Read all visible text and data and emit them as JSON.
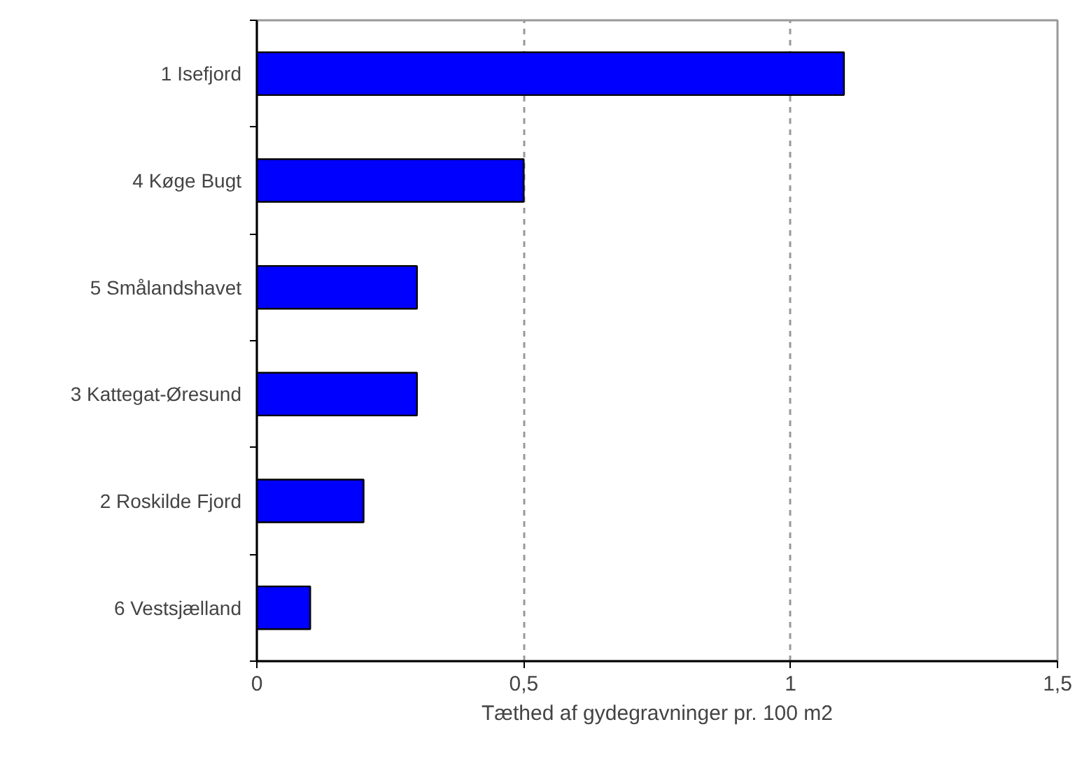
{
  "chart_data": {
    "type": "bar",
    "orientation": "horizontal",
    "categories": [
      "1 Isefjord",
      "4 Køge Bugt",
      "5 Smålandshavet",
      "3 Kattegat-Øresund",
      "2 Roskilde Fjord",
      "6 Vestsjælland"
    ],
    "values": [
      1.1,
      0.5,
      0.3,
      0.3,
      0.2,
      0.1
    ],
    "color": "#0000ff",
    "xlabel": "Tæthed af gydegravninger pr. 100 m2",
    "xlim": [
      0,
      1.5
    ],
    "xticks": [
      0,
      {
        "value": 0.5,
        "label": "0,5"
      },
      1,
      {
        "value": 1.5,
        "label": "1,5"
      }
    ],
    "grid": "x"
  }
}
